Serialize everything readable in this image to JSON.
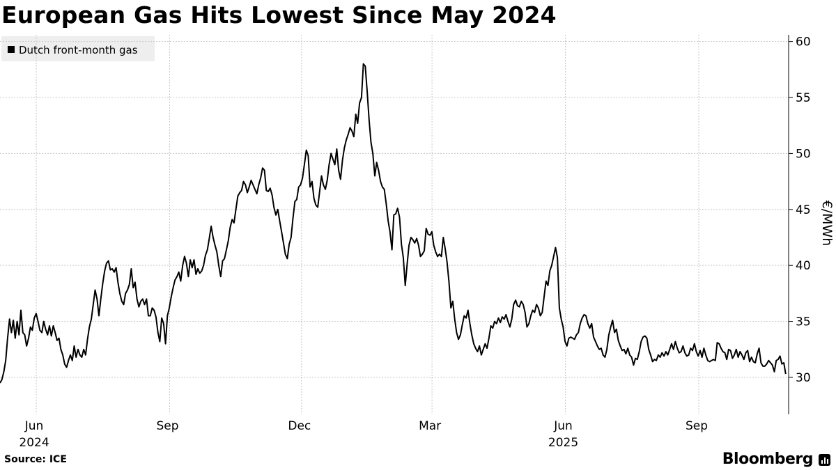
{
  "chart_data": {
    "type": "line",
    "title": "European Gas Hits Lowest Since May 2024",
    "series": [
      {
        "name": "Dutch front-month gas",
        "color": "#000000",
        "start_date": "2024-05-07",
        "end_date": "2025-10-31",
        "values": [
          29.5,
          29.8,
          30.5,
          31.5,
          33.5,
          35.2,
          34.0,
          35.1,
          33.5,
          35.0,
          33.8,
          36.0,
          34.0,
          33.8,
          32.8,
          33.5,
          34.5,
          34.2,
          35.3,
          35.7,
          35.0,
          34.2,
          34.0,
          35.0,
          34.3,
          33.8,
          34.6,
          33.7,
          34.6,
          34.0,
          33.3,
          33.5,
          32.5,
          32.0,
          31.2,
          30.9,
          31.5,
          32.0,
          31.5,
          32.8,
          31.8,
          32.5,
          32.0,
          31.8,
          32.5,
          32.0,
          33.4,
          34.5,
          35.2,
          36.5,
          37.8,
          37.0,
          35.5,
          37.0,
          38.4,
          39.5,
          40.2,
          40.4,
          39.6,
          39.7,
          39.4,
          39.8,
          38.5,
          37.5,
          36.8,
          36.5,
          37.5,
          37.8,
          38.3,
          39.7,
          38.0,
          38.5,
          37.0,
          36.3,
          36.8,
          37.0,
          36.5,
          37.0,
          35.5,
          35.5,
          36.2,
          36.0,
          35.4,
          34.0,
          33.2,
          35.3,
          34.8,
          33.0,
          35.5,
          36.2,
          37.2,
          38.0,
          38.7,
          39.0,
          39.4,
          38.6,
          40.0,
          40.8,
          40.2,
          39.0,
          40.5,
          39.8,
          40.5,
          39.2,
          39.7,
          39.3,
          39.5,
          40.0,
          40.9,
          41.4,
          42.4,
          43.5,
          42.5,
          41.8,
          41.2,
          40.0,
          39.0,
          40.4,
          40.6,
          41.4,
          42.2,
          43.4,
          44.1,
          43.8,
          45.0,
          46.2,
          46.5,
          46.7,
          47.5,
          47.2,
          46.5,
          47.0,
          47.6,
          47.2,
          46.8,
          46.4,
          47.2,
          47.8,
          48.7,
          48.5,
          46.7,
          46.6,
          46.9,
          46.3,
          45.2,
          44.5,
          45.0,
          44.0,
          43.0,
          42.0,
          41.0,
          40.6,
          41.9,
          42.5,
          44.2,
          45.7,
          45.9,
          47.0,
          47.2,
          47.8,
          49.0,
          50.3,
          49.8,
          47.0,
          47.5,
          46.0,
          45.4,
          45.2,
          46.6,
          48.0,
          47.2,
          46.8,
          47.6,
          49.0,
          50.0,
          49.5,
          49.0,
          50.4,
          48.5,
          47.7,
          49.4,
          50.5,
          51.2,
          51.7,
          52.3,
          52.0,
          51.5,
          53.5,
          52.7,
          54.5,
          55.0,
          58.0,
          57.8,
          55.5,
          53.0,
          51.0,
          50.0,
          48.0,
          49.2,
          48.5,
          47.5,
          47.0,
          46.8,
          45.5,
          44.0,
          43.0,
          41.4,
          44.5,
          44.6,
          45.1,
          44.3,
          41.9,
          40.7,
          38.2,
          40.1,
          41.8,
          42.5,
          42.3,
          42.0,
          42.4,
          41.8,
          40.8,
          41.0,
          41.3,
          43.3,
          42.8,
          42.7,
          43.0,
          41.8,
          41.2,
          40.8,
          41.0,
          40.8,
          42.5,
          41.5,
          40.3,
          38.5,
          36.2,
          36.8,
          35.2,
          34.0,
          33.4,
          33.8,
          34.7,
          35.5,
          35.3,
          36.0,
          34.8,
          33.8,
          33.0,
          32.6,
          32.3,
          32.8,
          32.0,
          32.5,
          33.0,
          32.6,
          33.5,
          34.6,
          34.4,
          35.0,
          34.8,
          35.3,
          34.9,
          35.4,
          35.2,
          35.6,
          35.0,
          34.5,
          35.2,
          36.5,
          36.9,
          36.4,
          36.3,
          36.8,
          36.5,
          35.8,
          34.5,
          34.8,
          35.5,
          36.0,
          35.8,
          36.5,
          36.2,
          35.5,
          35.8,
          37.2,
          38.6,
          38.2,
          39.5,
          40.0,
          40.8,
          41.6,
          40.7,
          36.2,
          35.2,
          34.5,
          33.2,
          32.8,
          33.5,
          33.6,
          33.5,
          33.4,
          33.8,
          34.0,
          34.8,
          35.3,
          35.6,
          35.5,
          34.8,
          34.4,
          34.8,
          33.6,
          33.2,
          32.8,
          32.5,
          32.6,
          32.0,
          31.8,
          32.5,
          33.8,
          34.5,
          35.1,
          34.0,
          34.3,
          33.3,
          32.8,
          32.4,
          32.5,
          32.1,
          32.6,
          32.0,
          31.8,
          31.1,
          31.7,
          31.6,
          32.3,
          33.2,
          33.6,
          33.7,
          33.5,
          32.5,
          32.0,
          31.4,
          31.6,
          31.5,
          32.0,
          31.8,
          32.2,
          31.9,
          32.3,
          32.0,
          32.5,
          33.0,
          32.5,
          33.2,
          32.6,
          32.2,
          32.3,
          32.8,
          32.2,
          31.9,
          32.0,
          32.6,
          32.4,
          33.0,
          32.3,
          31.9,
          32.4,
          31.8,
          32.6,
          32.0,
          31.5,
          31.4,
          31.5,
          31.6,
          31.5,
          33.1,
          33.0,
          32.6,
          32.3,
          32.2,
          31.6,
          32.5,
          32.4,
          31.7,
          32.0,
          32.5,
          31.8,
          32.3,
          32.0,
          31.6,
          32.2,
          32.4,
          31.4,
          31.8,
          31.4,
          31.3,
          32.1,
          32.6,
          31.3,
          31.0,
          31.0,
          31.2,
          31.5,
          31.3,
          31.1,
          30.5,
          31.5,
          31.6,
          31.9,
          31.2,
          31.3,
          30.3
        ]
      }
    ],
    "ylabel": "€/MWh",
    "ylim": [
      26.7,
      60.6
    ],
    "yticks": [
      30,
      35,
      40,
      45,
      50,
      55,
      60
    ],
    "xlim": [
      "2024-05-07",
      "2025-11-02"
    ],
    "xticks": [
      {
        "date": "2024-06-01",
        "label": "Jun",
        "year": "2024"
      },
      {
        "date": "2024-09-01",
        "label": "Sep"
      },
      {
        "date": "2024-12-01",
        "label": "Dec"
      },
      {
        "date": "2025-03-01",
        "label": "Mar"
      },
      {
        "date": "2025-06-01",
        "label": "Jun",
        "year": "2025"
      },
      {
        "date": "2025-09-01",
        "label": "Sep"
      }
    ],
    "grid": true,
    "legend": "top-left",
    "yaxis_position": "right"
  },
  "source": "Source: ICE",
  "brand": "Bloomberg",
  "colors": {
    "line": "#000000",
    "grid": "#c8c8c8",
    "legend_bg": "#eeeeee"
  }
}
